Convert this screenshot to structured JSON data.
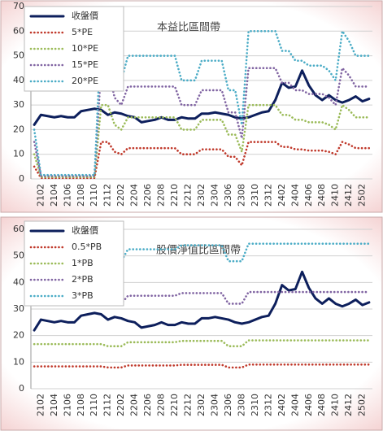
{
  "chart_data": [
    {
      "type": "line",
      "title": "本益比區間帶",
      "categories": [
        null,
        "2102",
        null,
        "2104",
        null,
        "2106",
        null,
        "2108",
        null,
        "2110",
        null,
        "2112",
        null,
        "2202",
        null,
        "2204",
        null,
        "2206",
        null,
        "2208",
        null,
        "2210",
        null,
        "2212",
        null,
        "2302",
        null,
        "2304",
        null,
        "2306",
        null,
        "2308",
        null,
        "2310",
        null,
        "2312",
        null,
        "2402",
        null,
        "2404",
        null,
        "2406",
        null,
        "2408",
        null,
        "2410",
        null,
        "2412",
        null,
        "2502",
        null
      ],
      "ylim": [
        0,
        70
      ],
      "yticks": [
        0,
        10,
        20,
        30,
        40,
        50,
        60,
        70
      ],
      "grid": true,
      "legend": "upper left",
      "series": [
        {
          "name": "收盤價",
          "color": "#0d1f5c",
          "style": "solid",
          "values": [
            22,
            26,
            25.5,
            25,
            25.5,
            25,
            25,
            27.5,
            28,
            28.5,
            28,
            26,
            27,
            26.5,
            25.5,
            25,
            23,
            23.5,
            24,
            25,
            24,
            24,
            25,
            24.5,
            24.5,
            26.5,
            26.5,
            27,
            26.5,
            26,
            25,
            24.5,
            25,
            26,
            27,
            27.5,
            32,
            39,
            37,
            37.5,
            44,
            38,
            34,
            32,
            34,
            32,
            31,
            32,
            33.5,
            31.5,
            32.5
          ]
        },
        {
          "name": "5*PE",
          "color": "#c0392b",
          "style": "dotted",
          "values": [
            5,
            0.4,
            0.4,
            0.4,
            0.4,
            0.4,
            0.4,
            0.4,
            0.4,
            0.4,
            15,
            15,
            11,
            10,
            12.5,
            12.5,
            12.5,
            12.5,
            12.5,
            12.5,
            12.5,
            12.5,
            10,
            10,
            10,
            12,
            12,
            12,
            12,
            9,
            9,
            5.5,
            15,
            15,
            15,
            15,
            15,
            13,
            13,
            12,
            12,
            11.5,
            11.5,
            11.5,
            11,
            10,
            15,
            14,
            12.5,
            12.5,
            12.5
          ]
        },
        {
          "name": "10*PE",
          "color": "#9bbb59",
          "style": "dotted",
          "values": [
            10,
            0.8,
            0.8,
            0.8,
            0.8,
            0.8,
            0.8,
            0.8,
            0.8,
            0.8,
            30,
            30,
            22,
            20,
            25,
            25,
            25,
            25,
            25,
            25,
            25,
            25,
            20,
            20,
            20,
            24,
            24,
            24,
            24,
            18,
            18,
            11,
            30,
            30,
            30,
            30,
            30,
            26,
            26,
            24,
            24,
            23,
            23,
            23,
            22,
            20,
            30,
            28,
            25,
            25,
            25
          ]
        },
        {
          "name": "15*PE",
          "color": "#8064a2",
          "style": "dotted",
          "values": [
            15,
            1.2,
            1.2,
            1.2,
            1.2,
            1.2,
            1.2,
            1.2,
            1.2,
            1.2,
            45,
            45,
            33,
            30,
            37.5,
            37.5,
            37.5,
            37.5,
            37.5,
            37.5,
            37.5,
            37.5,
            30,
            30,
            30,
            36,
            36,
            36,
            36,
            27,
            27,
            16.5,
            45,
            45,
            45,
            45,
            45,
            39,
            39,
            36,
            36,
            34.5,
            34.5,
            34.5,
            33,
            30,
            45,
            42,
            37.5,
            37.5,
            37.5
          ]
        },
        {
          "name": "20*PE",
          "color": "#4bacc6",
          "style": "dotted",
          "values": [
            20,
            1.6,
            1.6,
            1.6,
            1.6,
            1.6,
            1.6,
            1.6,
            1.6,
            1.6,
            60,
            60,
            44,
            40,
            50,
            50,
            50,
            50,
            50,
            50,
            50,
            50,
            40,
            40,
            40,
            48,
            48,
            48,
            48,
            36,
            36,
            22,
            60,
            60,
            60,
            60,
            60,
            52,
            52,
            48,
            48,
            46,
            46,
            46,
            44,
            40,
            60,
            56,
            50,
            50,
            50
          ]
        }
      ]
    },
    {
      "type": "line",
      "title": "股價淨值比區間帶",
      "categories": [
        null,
        "2102",
        null,
        "2104",
        null,
        "2106",
        null,
        "2108",
        null,
        "2110",
        null,
        "2112",
        null,
        "2202",
        null,
        "2204",
        null,
        "2206",
        null,
        "2208",
        null,
        "2210",
        null,
        "2212",
        null,
        "2302",
        null,
        "2304",
        null,
        "2306",
        null,
        "2308",
        null,
        "2310",
        null,
        "2312",
        null,
        "2402",
        null,
        "2404",
        null,
        "2406",
        null,
        "2408",
        null,
        "2410",
        null,
        "2412",
        null,
        "2502",
        null
      ],
      "ylim": [
        0,
        60
      ],
      "yticks": [
        0,
        10,
        20,
        30,
        40,
        50,
        60
      ],
      "grid": true,
      "legend": "upper left",
      "series": [
        {
          "name": "收盤價",
          "color": "#0d1f5c",
          "style": "solid",
          "values": [
            22,
            26,
            25.5,
            25,
            25.5,
            25,
            25,
            27.5,
            28,
            28.5,
            28,
            26,
            27,
            26.5,
            25.5,
            25,
            23,
            23.5,
            24,
            25,
            24,
            24,
            25,
            24.5,
            24.5,
            26.5,
            26.5,
            27,
            26.5,
            26,
            25,
            24.5,
            25,
            26,
            27,
            27.5,
            32,
            39,
            37,
            37.5,
            44,
            38,
            34,
            32,
            34,
            32,
            31,
            32,
            33.5,
            31.5,
            32.5
          ]
        },
        {
          "name": "0.5*PB",
          "color": "#c0392b",
          "style": "dotted",
          "values": [
            8.4,
            8.4,
            8.4,
            8.4,
            8.4,
            8.4,
            8.4,
            8.4,
            8.4,
            8.4,
            8.4,
            8,
            8,
            8,
            8.75,
            8.75,
            8.75,
            8.75,
            8.75,
            8.75,
            8.75,
            8.75,
            9,
            9,
            9,
            9,
            9,
            9,
            9,
            8,
            8,
            8,
            9.1,
            9.1,
            9.1,
            9.1,
            9.1,
            9.1,
            9.1,
            9.1,
            9.1,
            9.1,
            9.1,
            9.1,
            9.1,
            9.1,
            9.1,
            9.1,
            9.1,
            9.1,
            9.1
          ]
        },
        {
          "name": "1*PB",
          "color": "#9bbb59",
          "style": "dotted",
          "values": [
            16.8,
            16.8,
            16.8,
            16.8,
            16.8,
            16.8,
            16.8,
            16.8,
            16.8,
            16.8,
            16.8,
            16,
            16,
            16,
            17.5,
            17.5,
            17.5,
            17.5,
            17.5,
            17.5,
            17.5,
            17.5,
            18,
            18,
            18,
            18,
            18,
            18,
            18,
            16,
            16,
            16,
            18.2,
            18.2,
            18.2,
            18.2,
            18.2,
            18.2,
            18.2,
            18.2,
            18.2,
            18.2,
            18.2,
            18.2,
            18.2,
            18.2,
            18.2,
            18.2,
            18.2,
            18.2,
            18.2
          ]
        },
        {
          "name": "2*PB",
          "color": "#8064a2",
          "style": "dotted",
          "values": [
            33.6,
            33.6,
            33.6,
            33.6,
            33.6,
            33.6,
            33.6,
            33.6,
            33.6,
            33.6,
            33.6,
            32,
            32,
            32,
            35,
            35,
            35,
            35,
            35,
            35,
            35,
            35,
            36,
            36,
            36,
            36,
            36,
            36,
            36,
            32,
            32,
            32,
            36.4,
            36.4,
            36.4,
            36.4,
            36.4,
            36.4,
            36.4,
            36.4,
            36.4,
            36.4,
            36.4,
            36.4,
            36.4,
            36.4,
            36.4,
            36.4,
            36.4,
            36.4,
            36.4
          ]
        },
        {
          "name": "3*PB",
          "color": "#4bacc6",
          "style": "dotted",
          "values": [
            50.4,
            50.4,
            50.4,
            50.4,
            50.4,
            50.4,
            50.4,
            50.4,
            50.4,
            50.4,
            50.4,
            48,
            48,
            48,
            52.5,
            52.5,
            52.5,
            52.5,
            52.5,
            52.5,
            52.5,
            52.5,
            54,
            54,
            54,
            54,
            54,
            54,
            54,
            48,
            48,
            48,
            54.6,
            54.6,
            54.6,
            54.6,
            54.6,
            54.6,
            54.6,
            54.6,
            54.6,
            54.6,
            54.6,
            54.6,
            54.6,
            54.6,
            54.6,
            54.6,
            54.6,
            54.6,
            54.6
          ]
        }
      ]
    }
  ]
}
